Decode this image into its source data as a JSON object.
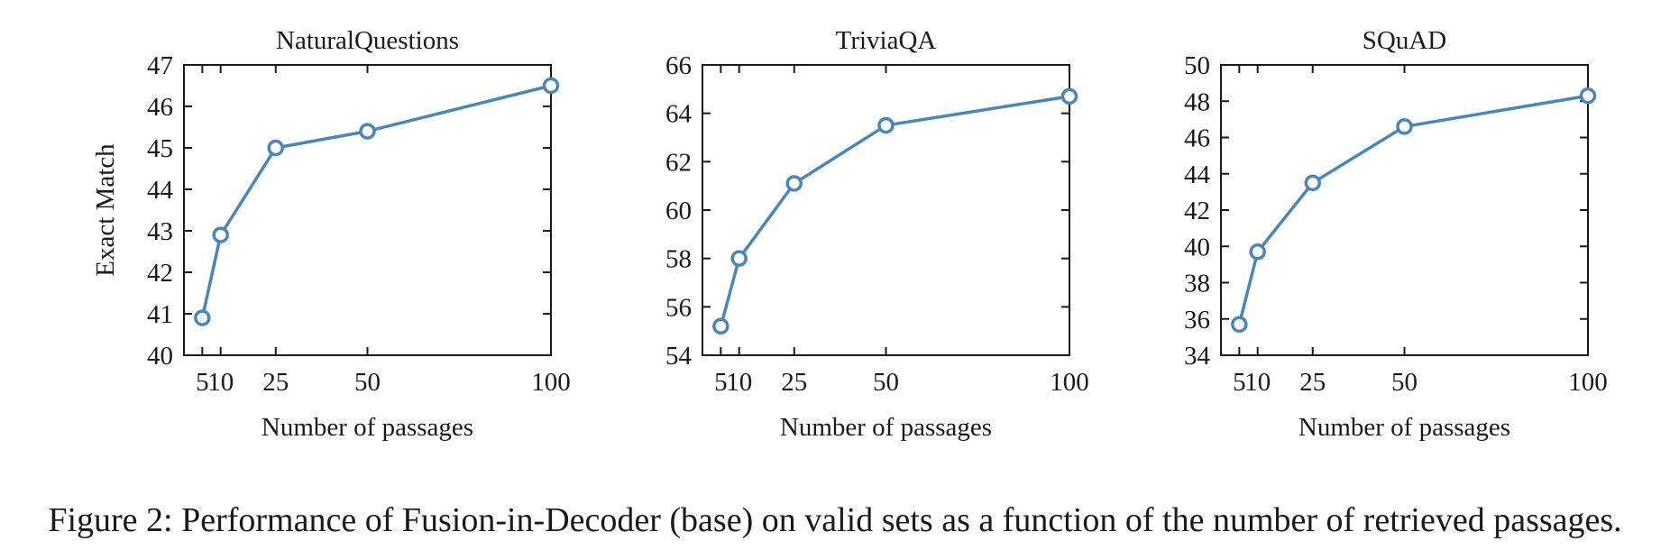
{
  "caption": "Figure 2: Performance of Fusion-in-Decoder (base) on valid sets as a function of the number of retrieved passages.",
  "line_color": "#4a86b8",
  "chart_data": [
    {
      "type": "line",
      "title": "NaturalQuestions",
      "xlabel": "Number of passages",
      "ylabel": "Exact Match",
      "x": [
        5,
        10,
        25,
        50,
        100
      ],
      "xticks": [
        5,
        10,
        25,
        50,
        100
      ],
      "xlim": [
        0,
        100
      ],
      "ylim": [
        40,
        47
      ],
      "yticks": [
        40,
        41,
        42,
        43,
        44,
        45,
        46,
        47
      ],
      "series": [
        {
          "values": [
            40.9,
            42.9,
            45.0,
            45.4,
            46.5
          ]
        }
      ]
    },
    {
      "type": "line",
      "title": "TriviaQA",
      "xlabel": "Number of passages",
      "ylabel": "",
      "x": [
        5,
        10,
        25,
        50,
        100
      ],
      "xticks": [
        5,
        10,
        25,
        50,
        100
      ],
      "xlim": [
        0,
        100
      ],
      "ylim": [
        54,
        66
      ],
      "yticks": [
        54,
        56,
        58,
        60,
        62,
        64,
        66
      ],
      "series": [
        {
          "values": [
            55.2,
            58.0,
            61.1,
            63.5,
            64.7
          ]
        }
      ]
    },
    {
      "type": "line",
      "title": "SQuAD",
      "xlabel": "Number of passages",
      "ylabel": "",
      "x": [
        5,
        10,
        25,
        50,
        100
      ],
      "xticks": [
        5,
        10,
        25,
        50,
        100
      ],
      "xlim": [
        0,
        100
      ],
      "ylim": [
        34,
        50
      ],
      "yticks": [
        34,
        36,
        38,
        40,
        42,
        44,
        46,
        48,
        50
      ],
      "series": [
        {
          "values": [
            35.7,
            39.7,
            43.5,
            46.6,
            48.3
          ]
        }
      ]
    }
  ]
}
